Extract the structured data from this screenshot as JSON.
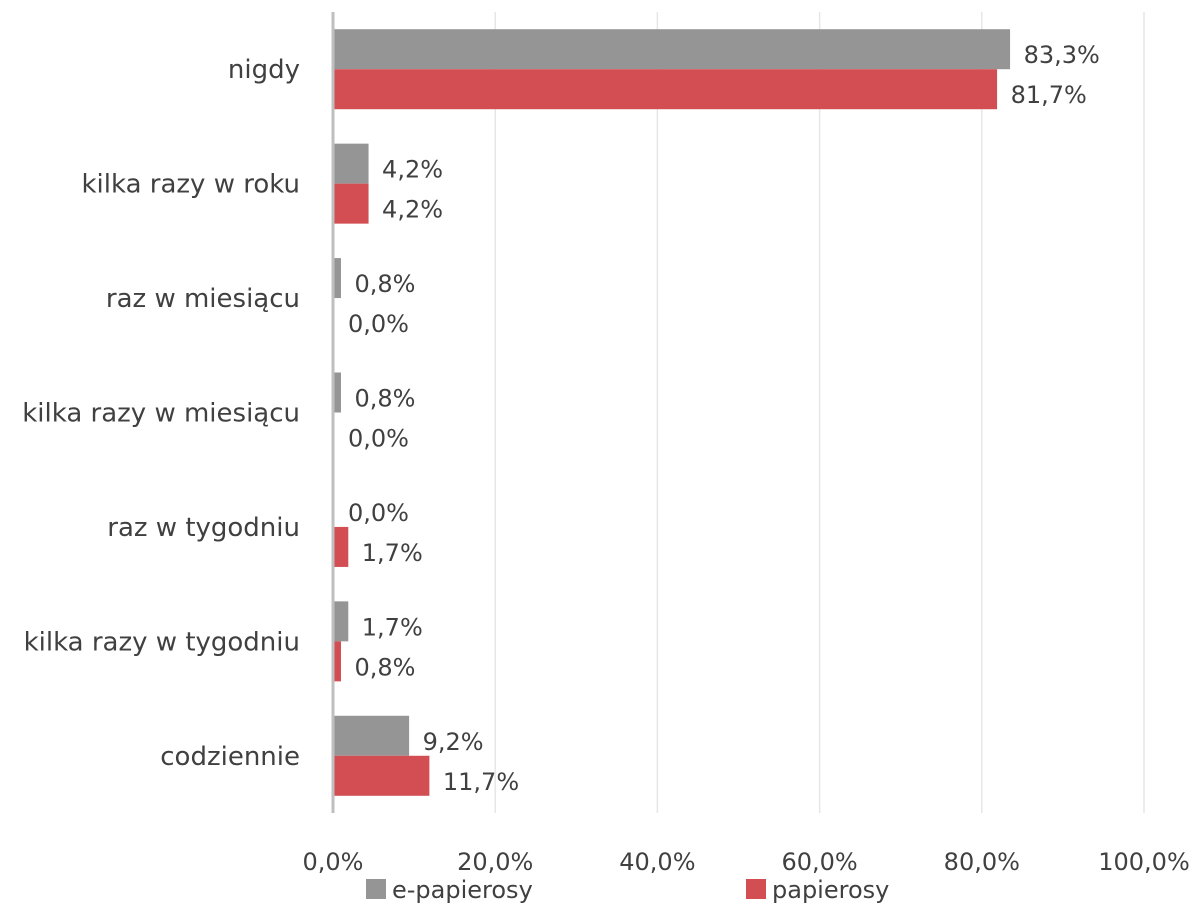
{
  "chart_data": {
    "type": "bar",
    "orientation": "horizontal",
    "categories": [
      "nigdy",
      "kilka razy w roku",
      "raz w miesiącu",
      "kilka razy w miesiącu",
      "raz w tygodniu",
      "kilka razy w tygodniu",
      "codziennie"
    ],
    "series": [
      {
        "name": "e-papierosy",
        "color": "#959595",
        "values": [
          83.3,
          4.2,
          0.8,
          0.8,
          0.0,
          1.7,
          9.2
        ],
        "labels": [
          "83,3%",
          "4,2%",
          "0,8%",
          "0,8%",
          "0,0%",
          "1,7%",
          "9,2%"
        ]
      },
      {
        "name": "papierosy",
        "color": "#d24e52",
        "values": [
          81.7,
          4.2,
          0.0,
          0.0,
          1.7,
          0.8,
          11.7
        ],
        "labels": [
          "81,7%",
          "4,2%",
          "0,0%",
          "0,0%",
          "1,7%",
          "0,8%",
          "11,7%"
        ]
      }
    ],
    "xlim": [
      0,
      100
    ],
    "x_ticks": [
      0,
      20,
      40,
      60,
      80,
      100
    ],
    "x_tick_labels": [
      "0,0%",
      "20,0%",
      "40,0%",
      "60,0%",
      "80,0%",
      "100,0%"
    ],
    "grid": true,
    "legend_position": "bottom",
    "title": "",
    "xlabel": "",
    "ylabel": ""
  }
}
